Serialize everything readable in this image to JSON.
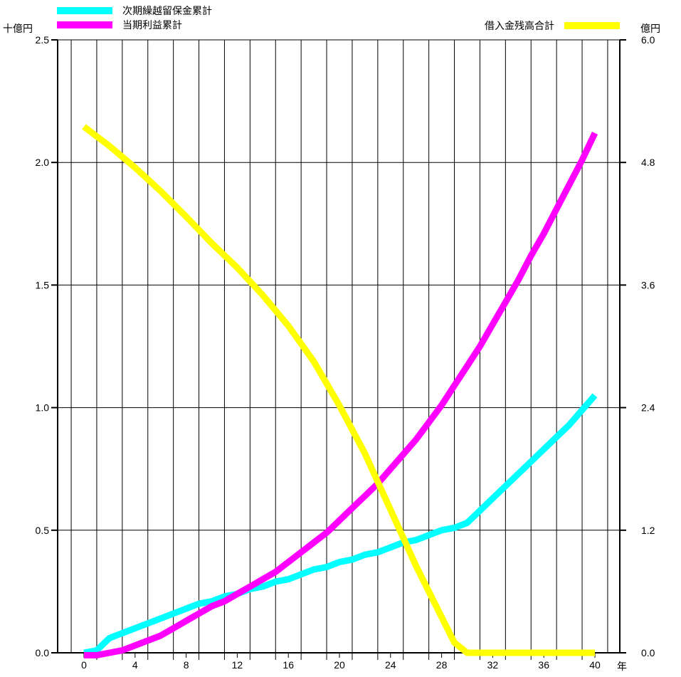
{
  "chart_data": {
    "type": "line",
    "left_axis_unit": "十億円",
    "right_axis_unit": "億円",
    "x_axis_unit": "年",
    "left_ylim": [
      0.0,
      2.5
    ],
    "right_ylim": [
      0.0,
      6.0
    ],
    "xlim": [
      0,
      40
    ],
    "grid": true,
    "left_ticks": [
      "0.0",
      "0.5",
      "1.0",
      "1.5",
      "2.0",
      "2.5"
    ],
    "right_ticks": [
      "0.0",
      "1.2",
      "2.4",
      "3.6",
      "4.8",
      "6.0"
    ],
    "x_ticks": [
      "0",
      "4",
      "8",
      "12",
      "16",
      "20",
      "24",
      "28",
      "32",
      "36",
      "40"
    ],
    "series": [
      {
        "name": "次期繰越留保金累計",
        "axis": "left",
        "color": "#00FFFF",
        "x": [
          0,
          1,
          2,
          3,
          4,
          5,
          6,
          7,
          8,
          9,
          10,
          11,
          12,
          13,
          14,
          15,
          16,
          17,
          18,
          19,
          20,
          21,
          22,
          23,
          24,
          25,
          26,
          27,
          28,
          29,
          30,
          31,
          32,
          33,
          34,
          35,
          36,
          37,
          38,
          39,
          40
        ],
        "values": [
          0.0,
          0.01,
          0.06,
          0.08,
          0.1,
          0.12,
          0.14,
          0.16,
          0.18,
          0.2,
          0.21,
          0.23,
          0.24,
          0.26,
          0.27,
          0.29,
          0.3,
          0.32,
          0.34,
          0.35,
          0.37,
          0.38,
          0.4,
          0.41,
          0.43,
          0.45,
          0.46,
          0.48,
          0.5,
          0.51,
          0.53,
          0.58,
          0.63,
          0.68,
          0.73,
          0.78,
          0.83,
          0.88,
          0.93,
          0.99,
          1.05
        ]
      },
      {
        "name": "当期利益累計",
        "axis": "left",
        "color": "#FF00FF",
        "x": [
          0,
          1,
          2,
          3,
          4,
          5,
          6,
          7,
          8,
          9,
          10,
          11,
          12,
          13,
          14,
          15,
          16,
          17,
          18,
          19,
          20,
          21,
          22,
          23,
          24,
          25,
          26,
          27,
          28,
          29,
          30,
          31,
          32,
          33,
          34,
          35,
          36,
          37,
          38,
          39,
          40
        ],
        "values": [
          -0.01,
          -0.01,
          0.0,
          0.01,
          0.03,
          0.05,
          0.07,
          0.1,
          0.13,
          0.16,
          0.19,
          0.21,
          0.24,
          0.27,
          0.3,
          0.33,
          0.37,
          0.41,
          0.45,
          0.49,
          0.54,
          0.59,
          0.64,
          0.69,
          0.75,
          0.81,
          0.87,
          0.94,
          1.01,
          1.09,
          1.17,
          1.25,
          1.34,
          1.43,
          1.52,
          1.62,
          1.71,
          1.81,
          1.91,
          2.01,
          2.12
        ]
      },
      {
        "name": "借入金残高合計",
        "axis": "right",
        "color": "#FFFF00",
        "x": [
          0,
          2,
          4,
          6,
          8,
          10,
          12,
          14,
          16,
          18,
          20,
          22,
          24,
          26,
          28,
          29,
          30,
          32,
          34,
          36,
          38,
          40
        ],
        "values": [
          5.15,
          4.96,
          4.75,
          4.52,
          4.27,
          4.01,
          3.77,
          3.5,
          3.2,
          2.85,
          2.42,
          1.95,
          1.4,
          0.85,
          0.35,
          0.1,
          0.0,
          0.0,
          0.0,
          0.0,
          0.0,
          0.0
        ]
      }
    ]
  }
}
